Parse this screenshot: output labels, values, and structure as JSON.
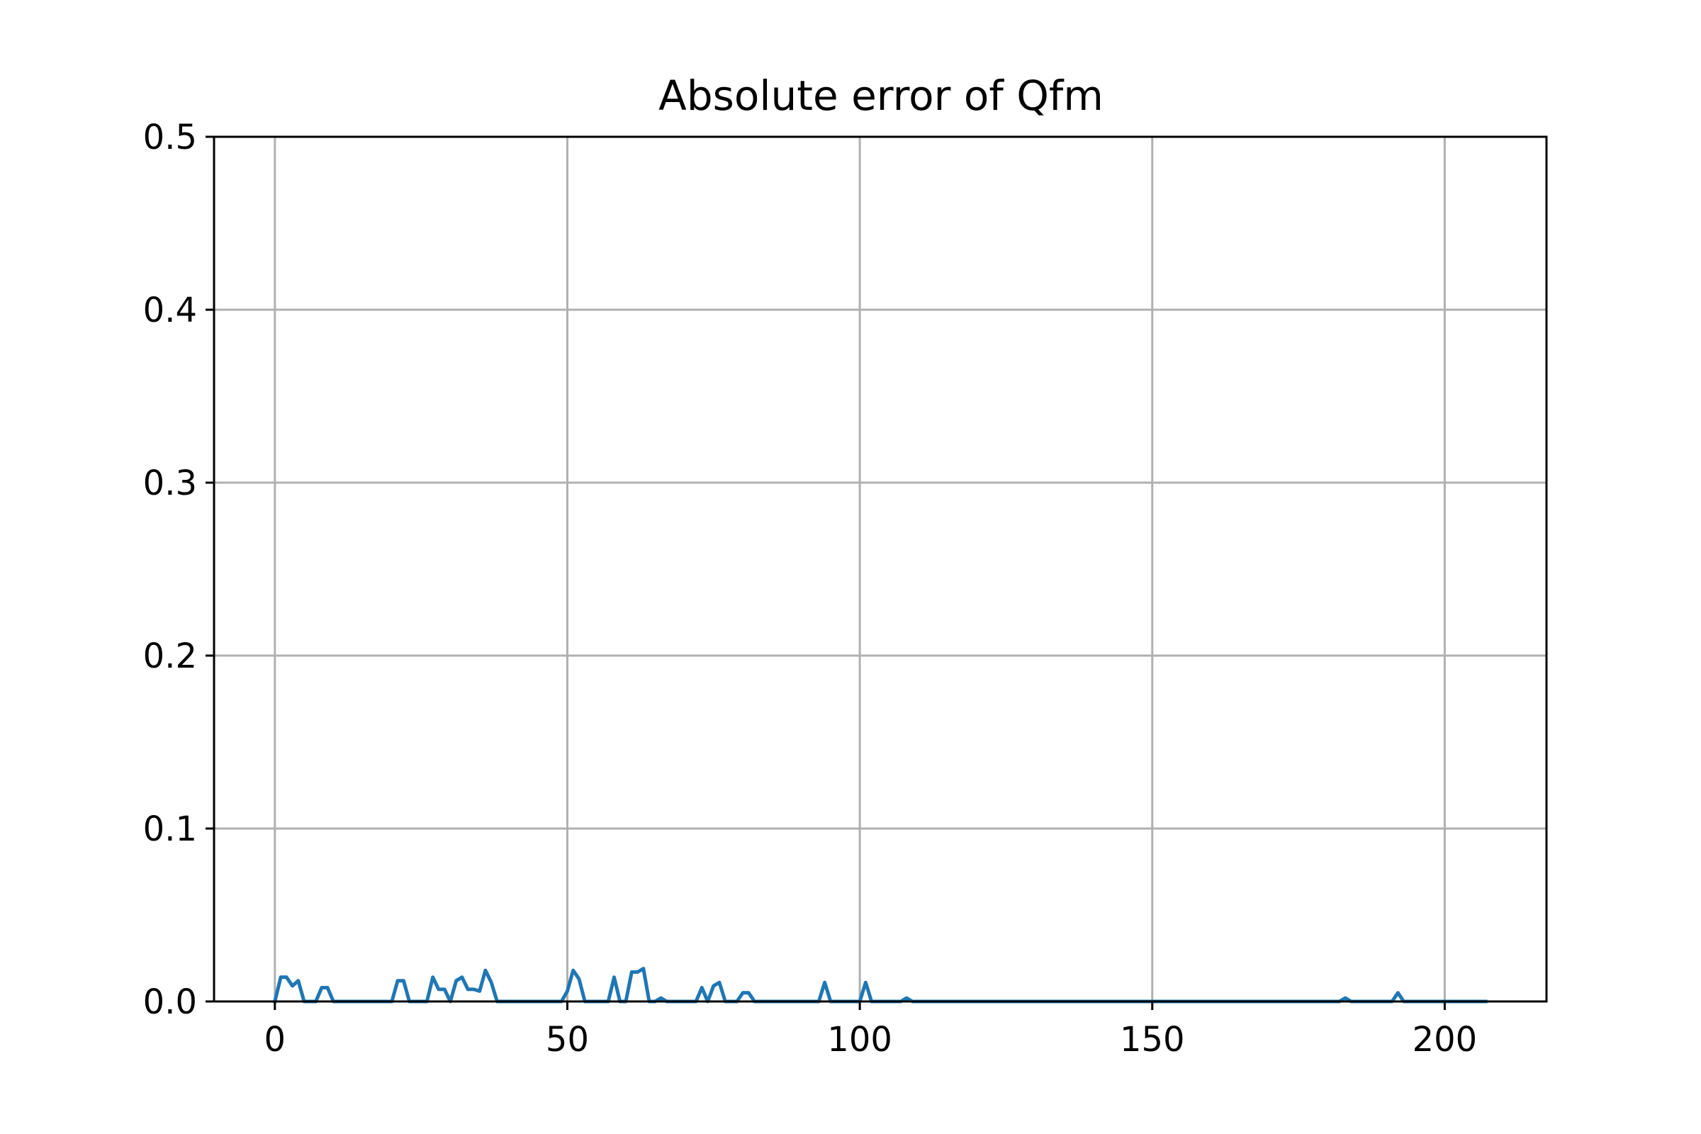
{
  "chart_data": {
    "type": "line",
    "title": "Absolute error of Qfm",
    "xlabel": "",
    "ylabel": "",
    "xlim": [
      -10.4,
      217.4
    ],
    "ylim": [
      0.0,
      0.5
    ],
    "xticks": [
      0,
      50,
      100,
      150,
      200
    ],
    "xtick_labels": [
      "0",
      "50",
      "100",
      "150",
      "200"
    ],
    "yticks": [
      0.0,
      0.1,
      0.2,
      0.3,
      0.4,
      0.5
    ],
    "ytick_labels": [
      "0.0",
      "0.1",
      "0.2",
      "0.3",
      "0.4",
      "0.5"
    ],
    "grid": true,
    "legend": false,
    "colors": {
      "series": "#1f77b4",
      "grid": "#b0b0b0",
      "axes": "#000000"
    },
    "series": [
      {
        "color": "#1f77b4",
        "x": [
          0,
          1,
          2,
          3,
          4,
          5,
          6,
          7,
          8,
          9,
          10,
          11,
          20,
          21,
          22,
          23,
          24,
          25,
          26,
          27,
          28,
          29,
          30,
          31,
          32,
          33,
          34,
          35,
          36,
          37,
          38,
          39,
          49,
          50,
          51,
          52,
          53,
          54,
          57,
          58,
          59,
          60,
          61,
          62,
          63,
          64,
          65,
          66,
          67,
          68,
          72,
          73,
          74,
          75,
          76,
          77,
          79,
          80,
          81,
          82,
          93,
          94,
          95,
          100,
          101,
          102,
          107,
          108,
          109,
          182,
          183,
          184,
          191,
          192,
          193,
          207
        ],
        "y": [
          0,
          0.014,
          0.014,
          0.009,
          0.012,
          0,
          0,
          0,
          0.008,
          0.008,
          0,
          0,
          0,
          0.012,
          0.012,
          0,
          0,
          0,
          0,
          0.014,
          0.007,
          0.007,
          0,
          0.012,
          0.014,
          0.007,
          0.007,
          0.006,
          0.018,
          0.011,
          0,
          0,
          0,
          0.006,
          0.018,
          0.013,
          0,
          0,
          0,
          0.014,
          0,
          0,
          0.017,
          0.017,
          0.019,
          0,
          0,
          0.002,
          0,
          0,
          0,
          0.008,
          0,
          0.009,
          0.011,
          0,
          0,
          0.005,
          0.005,
          0,
          0,
          0.011,
          0,
          0,
          0.011,
          0,
          0,
          0.002,
          0,
          0,
          0.002,
          0,
          0,
          0.005,
          0,
          0
        ]
      }
    ]
  }
}
